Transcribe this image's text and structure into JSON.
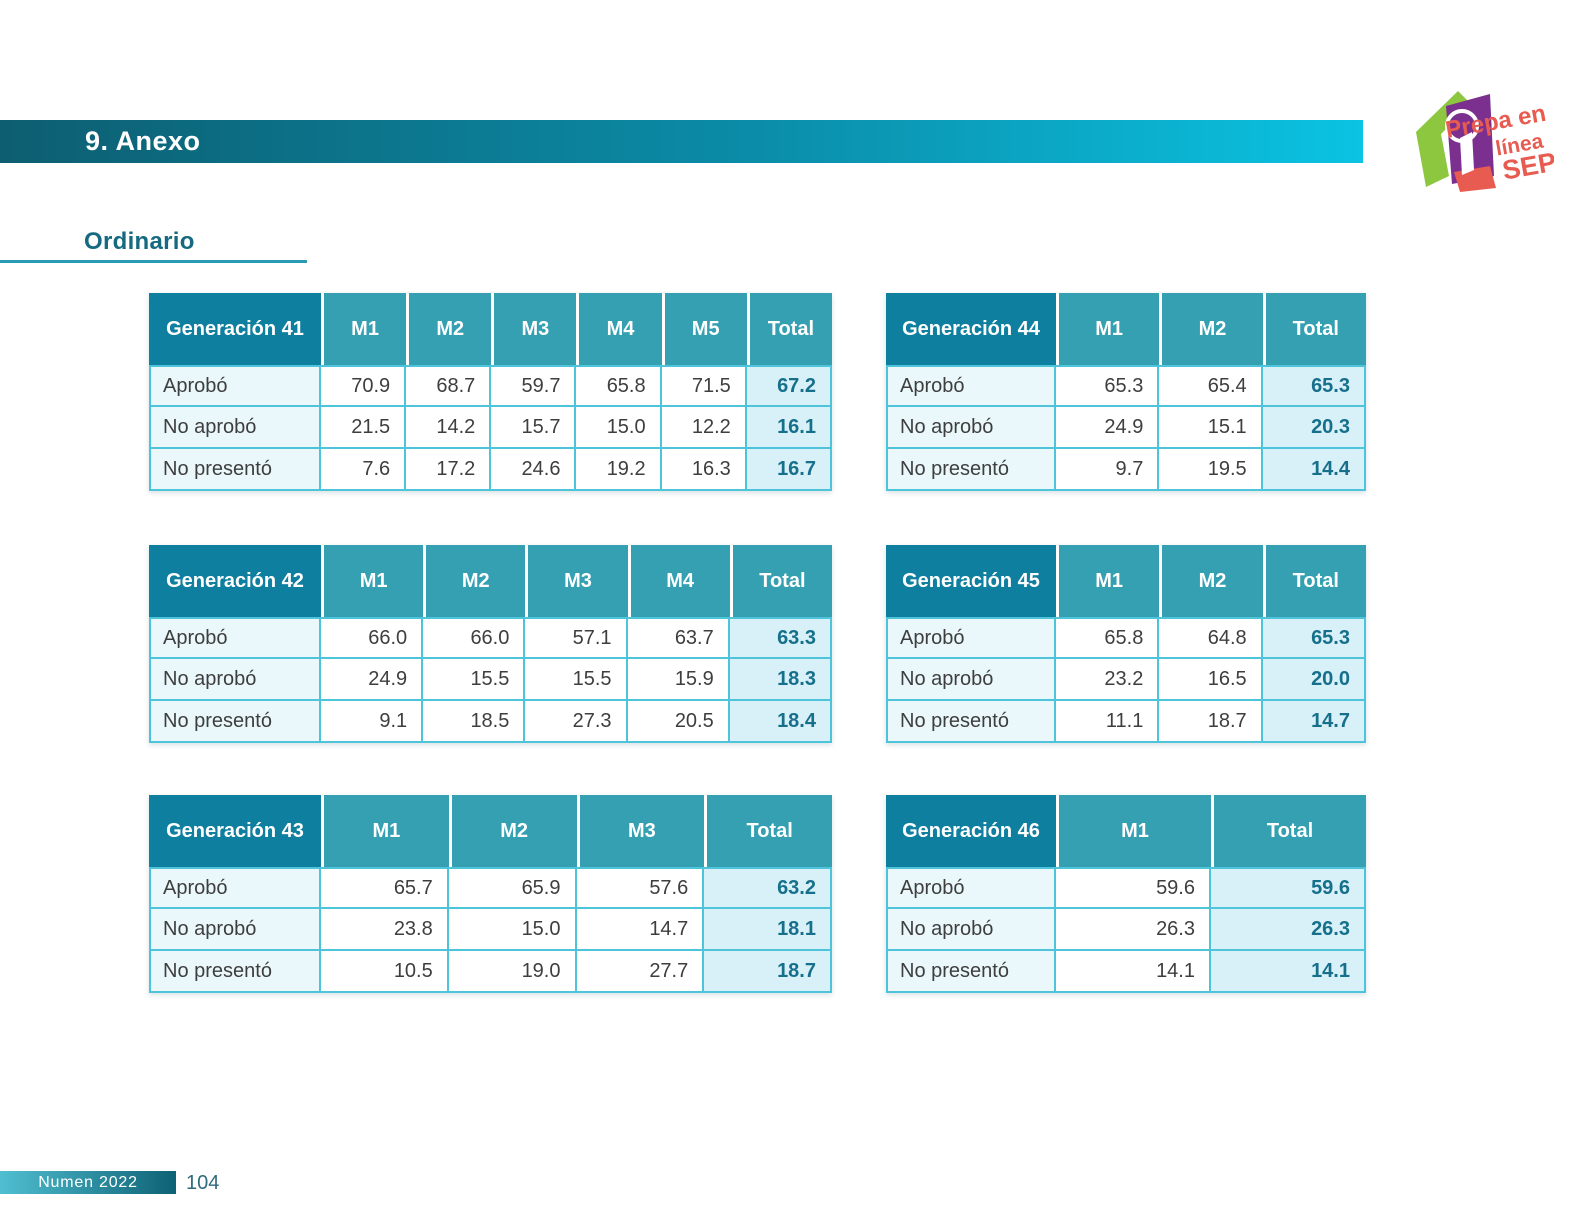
{
  "header": {
    "title": "9. Anexo"
  },
  "section": {
    "title": "Ordinario"
  },
  "logo": {
    "line1": "Prepa en",
    "line2": "línea",
    "line3": "SEP"
  },
  "footer": {
    "label": "Numen 2022",
    "page_number": "104"
  },
  "colors": {
    "header_label_bg": "#0F7F9F",
    "header_col_bg": "#35A0B2",
    "border_cyan": "#4EC4DB",
    "label_cell_bg": "#EAF8FC",
    "total_cell_bg": "#D8F0F8",
    "total_text": "#16708C",
    "bar_gradient_start": "#0D5E71",
    "bar_gradient_end": "#0BC3E2",
    "logo_green": "#8DC63F",
    "logo_purple": "#7B2F8E",
    "logo_coral": "#E85B50"
  },
  "tables": [
    {
      "id": "t41",
      "title": "Generación 41",
      "columns": [
        "M1",
        "M2",
        "M3",
        "M4",
        "M5"
      ],
      "total_label": "Total",
      "rows": [
        {
          "label": "Aprobó",
          "values": [
            "70.9",
            "68.7",
            "59.7",
            "65.8",
            "71.5"
          ],
          "total": "67.2"
        },
        {
          "label": "No aprobó",
          "values": [
            "21.5",
            "14.2",
            "15.7",
            "15.0",
            "12.2"
          ],
          "total": "16.1"
        },
        {
          "label": "No presentó",
          "values": [
            "7.6",
            "17.2",
            "24.6",
            "19.2",
            "16.3"
          ],
          "total": "16.7"
        }
      ]
    },
    {
      "id": "t44",
      "title": "Generación 44",
      "columns": [
        "M1",
        "M2"
      ],
      "total_label": "Total",
      "rows": [
        {
          "label": "Aprobó",
          "values": [
            "65.3",
            "65.4"
          ],
          "total": "65.3"
        },
        {
          "label": "No aprobó",
          "values": [
            "24.9",
            "15.1"
          ],
          "total": "20.3"
        },
        {
          "label": "No presentó",
          "values": [
            "9.7",
            "19.5"
          ],
          "total": "14.4"
        }
      ]
    },
    {
      "id": "t42",
      "title": "Generación 42",
      "columns": [
        "M1",
        "M2",
        "M3",
        "M4"
      ],
      "total_label": "Total",
      "rows": [
        {
          "label": "Aprobó",
          "values": [
            "66.0",
            "66.0",
            "57.1",
            "63.7"
          ],
          "total": "63.3"
        },
        {
          "label": "No aprobó",
          "values": [
            "24.9",
            "15.5",
            "15.5",
            "15.9"
          ],
          "total": "18.3"
        },
        {
          "label": "No presentó",
          "values": [
            "9.1",
            "18.5",
            "27.3",
            "20.5"
          ],
          "total": "18.4"
        }
      ]
    },
    {
      "id": "t45",
      "title": "Generación 45",
      "columns": [
        "M1",
        "M2"
      ],
      "total_label": "Total",
      "rows": [
        {
          "label": "Aprobó",
          "values": [
            "65.8",
            "64.8"
          ],
          "total": "65.3"
        },
        {
          "label": "No aprobó",
          "values": [
            "23.2",
            "16.5"
          ],
          "total": "20.0"
        },
        {
          "label": "No presentó",
          "values": [
            "11.1",
            "18.7"
          ],
          "total": "14.7"
        }
      ]
    },
    {
      "id": "t43",
      "title": "Generación 43",
      "columns": [
        "M1",
        "M2",
        "M3"
      ],
      "total_label": "Total",
      "rows": [
        {
          "label": "Aprobó",
          "values": [
            "65.7",
            "65.9",
            "57.6"
          ],
          "total": "63.2"
        },
        {
          "label": "No aprobó",
          "values": [
            "23.8",
            "15.0",
            "14.7"
          ],
          "total": "18.1"
        },
        {
          "label": "No presentó",
          "values": [
            "10.5",
            "19.0",
            "27.7"
          ],
          "total": "18.7"
        }
      ]
    },
    {
      "id": "t46",
      "title": "Generación 46",
      "columns": [
        "M1"
      ],
      "total_label": "Total",
      "rows": [
        {
          "label": "Aprobó",
          "values": [
            "59.6"
          ],
          "total": "59.6"
        },
        {
          "label": "No aprobó",
          "values": [
            "26.3"
          ],
          "total": "26.3"
        },
        {
          "label": "No presentó",
          "values": [
            "14.1"
          ],
          "total": "14.1"
        }
      ]
    }
  ]
}
